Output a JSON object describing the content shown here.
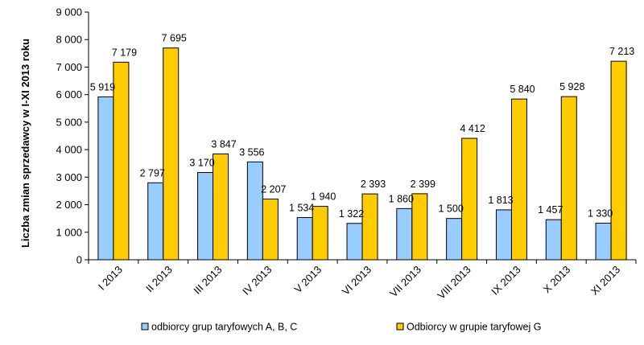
{
  "chart_data": {
    "type": "bar",
    "title": "",
    "xlabel": "",
    "ylabel": "Liczba zmian sprzedawcy w I-XI 2013 roku",
    "ylim": [
      0,
      9000
    ],
    "yticks": [
      0,
      1000,
      2000,
      3000,
      4000,
      5000,
      6000,
      7000,
      8000,
      9000
    ],
    "ytick_labels": [
      "0",
      "1 000",
      "2 000",
      "3 000",
      "4 000",
      "5 000",
      "6 000",
      "7 000",
      "8 000",
      "9 000"
    ],
    "categories": [
      "I 2013",
      "II 2013",
      "III 2013",
      "IV 2013",
      "V 2013",
      "VI 2013",
      "VII 2013",
      "VIII 2013",
      "IX 2013",
      "X 2013",
      "XI 2013"
    ],
    "series": [
      {
        "name": "odbiorcy grup taryfowych A, B, C",
        "color": "#99CCFF",
        "values": [
          5919,
          2797,
          3170,
          3556,
          1534,
          1322,
          1860,
          1500,
          1813,
          1457,
          1330
        ],
        "labels": [
          "5 919",
          "2 797",
          "3 170",
          "3 556",
          "1 534",
          "1 322",
          "1 860",
          "1 500",
          "1 813",
          "1 457",
          "1 330"
        ]
      },
      {
        "name": "Odbiorcy w grupie taryfowej G",
        "color": "#FFCC00",
        "values": [
          7179,
          7695,
          3847,
          2207,
          1940,
          2393,
          2399,
          4412,
          5840,
          5928,
          7213
        ],
        "labels": [
          "7 179",
          "7 695",
          "3 847",
          "2 207",
          "1 940",
          "2 393",
          "2 399",
          "4 412",
          "5 840",
          "5 928",
          "7 213"
        ]
      }
    ],
    "grid": false,
    "legend_position": "bottom"
  }
}
